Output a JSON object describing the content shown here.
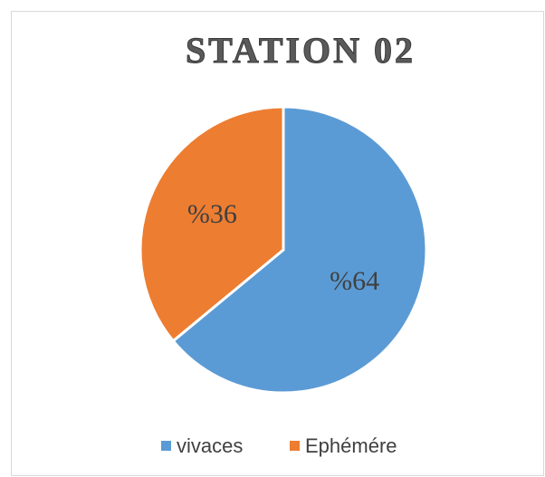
{
  "chart_data": {
    "type": "pie",
    "title": "STATION 02",
    "categories": [
      "vivaces",
      "Ephémére"
    ],
    "values": [
      64,
      36
    ],
    "value_labels": [
      "%64",
      "%36"
    ],
    "colors": [
      "#5b9bd5",
      "#ed7d31"
    ],
    "legend": "bottom"
  }
}
